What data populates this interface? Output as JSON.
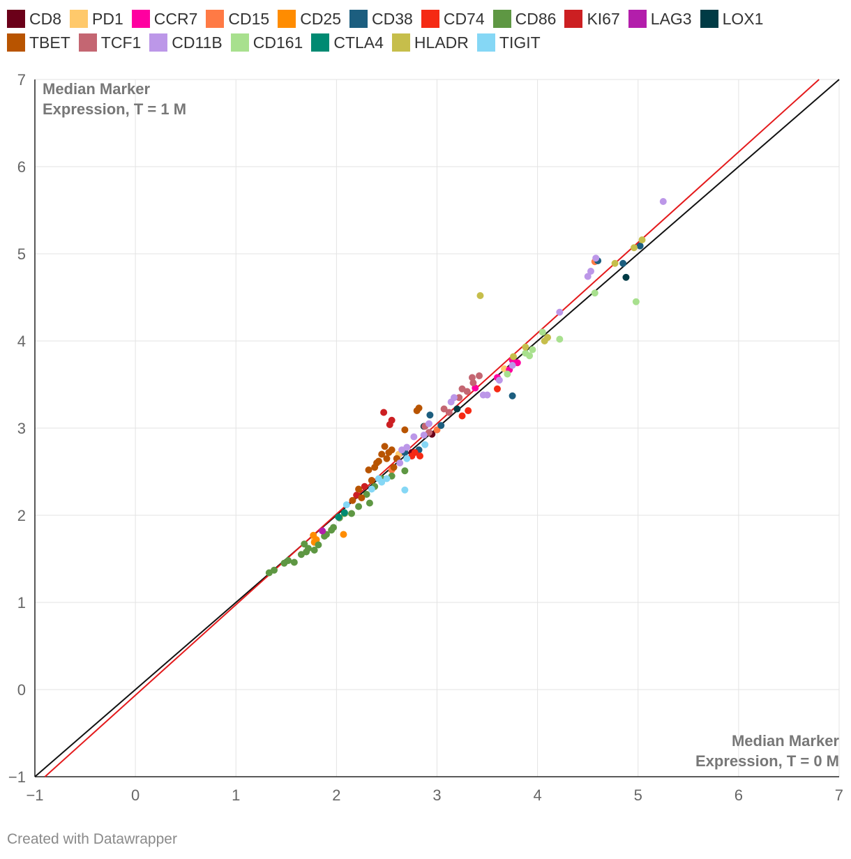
{
  "chart_data": {
    "type": "scatter",
    "xlabel": "Median Marker Expression, T = 0 M",
    "ylabel": "Median Marker Expression, T = 1 M",
    "xlabel_lines": [
      "Median Marker",
      "Expression, T = 0 M"
    ],
    "ylabel_lines": [
      "Median Marker",
      "Expression, T = 1 M"
    ],
    "xlim": [
      -1,
      7
    ],
    "ylim": [
      -1,
      7
    ],
    "xticks": [
      "−1",
      "0",
      "1",
      "2",
      "3",
      "4",
      "5",
      "6",
      "7"
    ],
    "yticks": [
      "−1",
      "0",
      "1",
      "2",
      "3",
      "4",
      "5",
      "6",
      "7"
    ],
    "grid": true,
    "legend_position": "top",
    "reference_lines": [
      {
        "name": "identity",
        "color": "#111111",
        "points": [
          [
            -1,
            -1
          ],
          [
            7,
            7
          ]
        ]
      },
      {
        "name": "fit",
        "color": "#e41a1c",
        "points": [
          [
            -0.9,
            -1
          ],
          [
            6.8,
            7
          ]
        ]
      }
    ],
    "series": [
      {
        "name": "CD8",
        "color": "#6b0019",
        "points": [
          [
            2.95,
            2.93
          ],
          [
            2.75,
            2.72
          ],
          [
            2.6,
            2.65
          ]
        ]
      },
      {
        "name": "PD1",
        "color": "#ffc96b",
        "points": [
          [
            1.78,
            1.73
          ],
          [
            3.67,
            3.68
          ],
          [
            2.62,
            2.7
          ]
        ]
      },
      {
        "name": "CCR7",
        "color": "#ff00a0",
        "points": [
          [
            3.38,
            3.46
          ],
          [
            3.6,
            3.58
          ],
          [
            3.72,
            3.67
          ],
          [
            3.75,
            3.78
          ],
          [
            3.8,
            3.75
          ]
        ]
      },
      {
        "name": "CD15",
        "color": "#ff7a45",
        "points": [
          [
            4.57,
            4.91
          ],
          [
            3.0,
            2.98
          ],
          [
            2.55,
            2.52
          ]
        ]
      },
      {
        "name": "CD25",
        "color": "#ff8c00",
        "points": [
          [
            2.07,
            1.78
          ],
          [
            1.77,
            1.77
          ],
          [
            1.8,
            1.72
          ],
          [
            1.78,
            1.69
          ]
        ]
      },
      {
        "name": "CD38",
        "color": "#1c5e7f",
        "points": [
          [
            2.93,
            3.15
          ],
          [
            3.75,
            3.37
          ],
          [
            4.85,
            4.89
          ],
          [
            5.02,
            5.09
          ],
          [
            4.6,
            4.92
          ],
          [
            2.68,
            2.72
          ],
          [
            2.82,
            2.75
          ],
          [
            3.04,
            3.03
          ]
        ]
      },
      {
        "name": "CD74",
        "color": "#f52a14",
        "points": [
          [
            3.6,
            3.45
          ],
          [
            3.25,
            3.14
          ],
          [
            3.31,
            3.2
          ],
          [
            2.83,
            2.68
          ],
          [
            2.75,
            2.68
          ],
          [
            2.78,
            2.72
          ]
        ]
      },
      {
        "name": "CD86",
        "color": "#5e9743",
        "points": [
          [
            1.33,
            1.34
          ],
          [
            1.38,
            1.37
          ],
          [
            1.48,
            1.45
          ],
          [
            1.52,
            1.48
          ],
          [
            1.58,
            1.46
          ],
          [
            1.65,
            1.55
          ],
          [
            1.7,
            1.58
          ],
          [
            1.72,
            1.62
          ],
          [
            1.78,
            1.6
          ],
          [
            1.82,
            1.66
          ],
          [
            1.88,
            1.76
          ],
          [
            1.9,
            1.78
          ],
          [
            1.97,
            1.86
          ],
          [
            2.03,
            1.97
          ],
          [
            2.08,
            2.02
          ],
          [
            2.15,
            2.02
          ],
          [
            2.22,
            2.1
          ],
          [
            2.3,
            2.24
          ],
          [
            2.33,
            2.14
          ],
          [
            2.38,
            2.33
          ],
          [
            2.45,
            2.42
          ],
          [
            2.55,
            2.45
          ],
          [
            2.68,
            2.51
          ],
          [
            1.68,
            1.67
          ],
          [
            1.95,
            1.83
          ]
        ]
      },
      {
        "name": "KI67",
        "color": "#cc1f22",
        "points": [
          [
            2.47,
            3.18
          ],
          [
            2.53,
            3.04
          ],
          [
            2.55,
            3.09
          ],
          [
            2.2,
            2.23
          ],
          [
            2.28,
            2.33
          ]
        ]
      },
      {
        "name": "LAG3",
        "color": "#b31eab",
        "points": [
          [
            1.86,
            1.82
          ]
        ]
      },
      {
        "name": "LOX1",
        "color": "#003b45",
        "points": [
          [
            4.88,
            4.73
          ],
          [
            3.2,
            3.22
          ],
          [
            2.87,
            3.02
          ]
        ]
      },
      {
        "name": "TBET",
        "color": "#b85400",
        "points": [
          [
            2.82,
            3.23
          ],
          [
            2.8,
            3.2
          ],
          [
            2.68,
            2.98
          ],
          [
            2.48,
            2.79
          ],
          [
            2.45,
            2.7
          ],
          [
            2.55,
            2.75
          ],
          [
            2.5,
            2.65
          ],
          [
            2.42,
            2.62
          ],
          [
            2.38,
            2.55
          ],
          [
            2.32,
            2.52
          ],
          [
            2.35,
            2.4
          ],
          [
            2.22,
            2.3
          ],
          [
            2.25,
            2.2
          ],
          [
            2.16,
            2.17
          ],
          [
            2.57,
            2.55
          ],
          [
            2.52,
            2.72
          ],
          [
            2.4,
            2.6
          ],
          [
            2.6,
            2.65
          ]
        ]
      },
      {
        "name": "TCF1",
        "color": "#c46672",
        "points": [
          [
            3.25,
            3.45
          ],
          [
            3.3,
            3.42
          ],
          [
            3.42,
            3.6
          ],
          [
            3.35,
            3.58
          ],
          [
            3.36,
            3.52
          ],
          [
            3.07,
            3.22
          ],
          [
            3.12,
            3.18
          ],
          [
            3.22,
            3.35
          ],
          [
            2.92,
            2.95
          ],
          [
            2.88,
            3.02
          ]
        ]
      },
      {
        "name": "CD11B",
        "color": "#bc97e8",
        "points": [
          [
            5.25,
            5.6
          ],
          [
            4.22,
            4.33
          ],
          [
            4.5,
            4.74
          ],
          [
            4.53,
            4.8
          ],
          [
            4.58,
            4.95
          ],
          [
            3.5,
            3.38
          ],
          [
            3.46,
            3.38
          ],
          [
            3.17,
            3.35
          ],
          [
            3.14,
            3.3
          ],
          [
            2.92,
            3.05
          ],
          [
            2.87,
            2.92
          ],
          [
            2.77,
            2.9
          ],
          [
            2.7,
            2.78
          ],
          [
            2.65,
            2.75
          ],
          [
            2.63,
            2.6
          ],
          [
            3.75,
            3.72
          ],
          [
            3.62,
            3.55
          ]
        ]
      },
      {
        "name": "CD161",
        "color": "#a8e08e",
        "points": [
          [
            4.98,
            4.45
          ],
          [
            4.57,
            4.55
          ],
          [
            4.22,
            4.02
          ],
          [
            4.05,
            4.1
          ],
          [
            3.92,
            3.83
          ],
          [
            3.95,
            3.9
          ],
          [
            3.88,
            3.86
          ],
          [
            3.7,
            3.62
          ]
        ]
      },
      {
        "name": "CTLA4",
        "color": "#008a72",
        "points": [
          [
            2.02,
            1.98
          ],
          [
            2.08,
            2.03
          ]
        ]
      },
      {
        "name": "HLADR",
        "color": "#c6be4b",
        "points": [
          [
            3.43,
            4.52
          ],
          [
            4.77,
            4.89
          ],
          [
            4.96,
            5.07
          ],
          [
            5.04,
            5.16
          ],
          [
            4.1,
            4.04
          ],
          [
            4.07,
            4.0
          ],
          [
            3.88,
            3.93
          ],
          [
            3.76,
            3.82
          ]
        ]
      },
      {
        "name": "TIGIT",
        "color": "#85d7f5",
        "points": [
          [
            2.68,
            2.29
          ],
          [
            2.1,
            2.12
          ],
          [
            2.5,
            2.42
          ],
          [
            2.45,
            2.38
          ],
          [
            2.42,
            2.42
          ],
          [
            2.35,
            2.3
          ],
          [
            2.88,
            2.81
          ],
          [
            2.7,
            2.65
          ]
        ]
      }
    ]
  },
  "footer": {
    "credit": "Created with Datawrapper"
  }
}
